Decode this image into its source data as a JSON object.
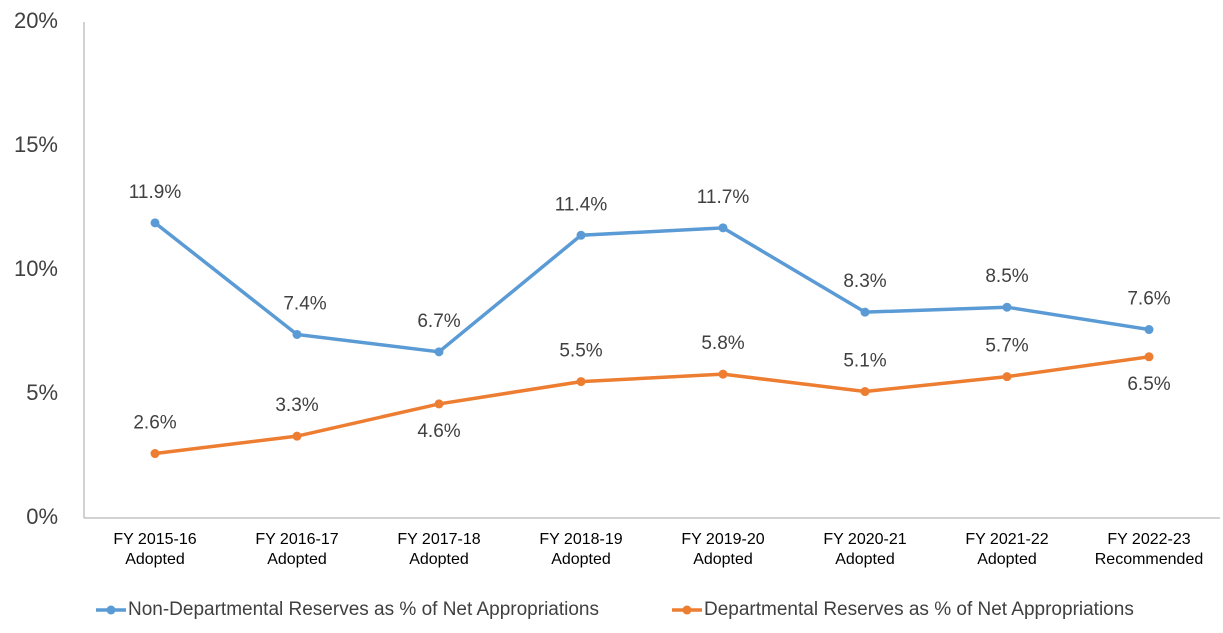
{
  "chart_data": {
    "type": "line",
    "categories": [
      "FY 2015-16 Adopted",
      "FY 2016-17 Adopted",
      "FY 2017-18 Adopted",
      "FY 2018-19 Adopted",
      "FY 2019-20 Adopted",
      "FY 2020-21 Adopted",
      "FY 2021-22 Adopted",
      "FY 2022-23 Recommended"
    ],
    "series": [
      {
        "name": "Non-Departmental Reserves as % of Net Appropriations",
        "color": "#5b9bd5",
        "values": [
          11.9,
          7.4,
          6.7,
          11.4,
          11.7,
          8.3,
          8.5,
          7.6
        ],
        "value_labels": [
          "11.9%",
          "7.4%",
          "6.7%",
          "11.4%",
          "11.7%",
          "8.3%",
          "8.5%",
          "7.6%"
        ]
      },
      {
        "name": "Departmental Reserves as % of Net Appropriations",
        "color": "#ed7d31",
        "values": [
          2.6,
          3.3,
          4.6,
          5.5,
          5.8,
          5.1,
          5.7,
          6.5
        ],
        "value_labels": [
          "2.6%",
          "3.3%",
          "4.6%",
          "5.5%",
          "5.8%",
          "5.1%",
          "5.7%",
          "6.5%"
        ]
      }
    ],
    "ylim": [
      0,
      20
    ],
    "yticks": [
      {
        "value": 0,
        "label": "0%"
      },
      {
        "value": 5,
        "label": "5%"
      },
      {
        "value": 10,
        "label": "10%"
      },
      {
        "value": 15,
        "label": "15%"
      },
      {
        "value": 20,
        "label": "20%"
      }
    ],
    "grid": false,
    "legend": "bottom"
  }
}
